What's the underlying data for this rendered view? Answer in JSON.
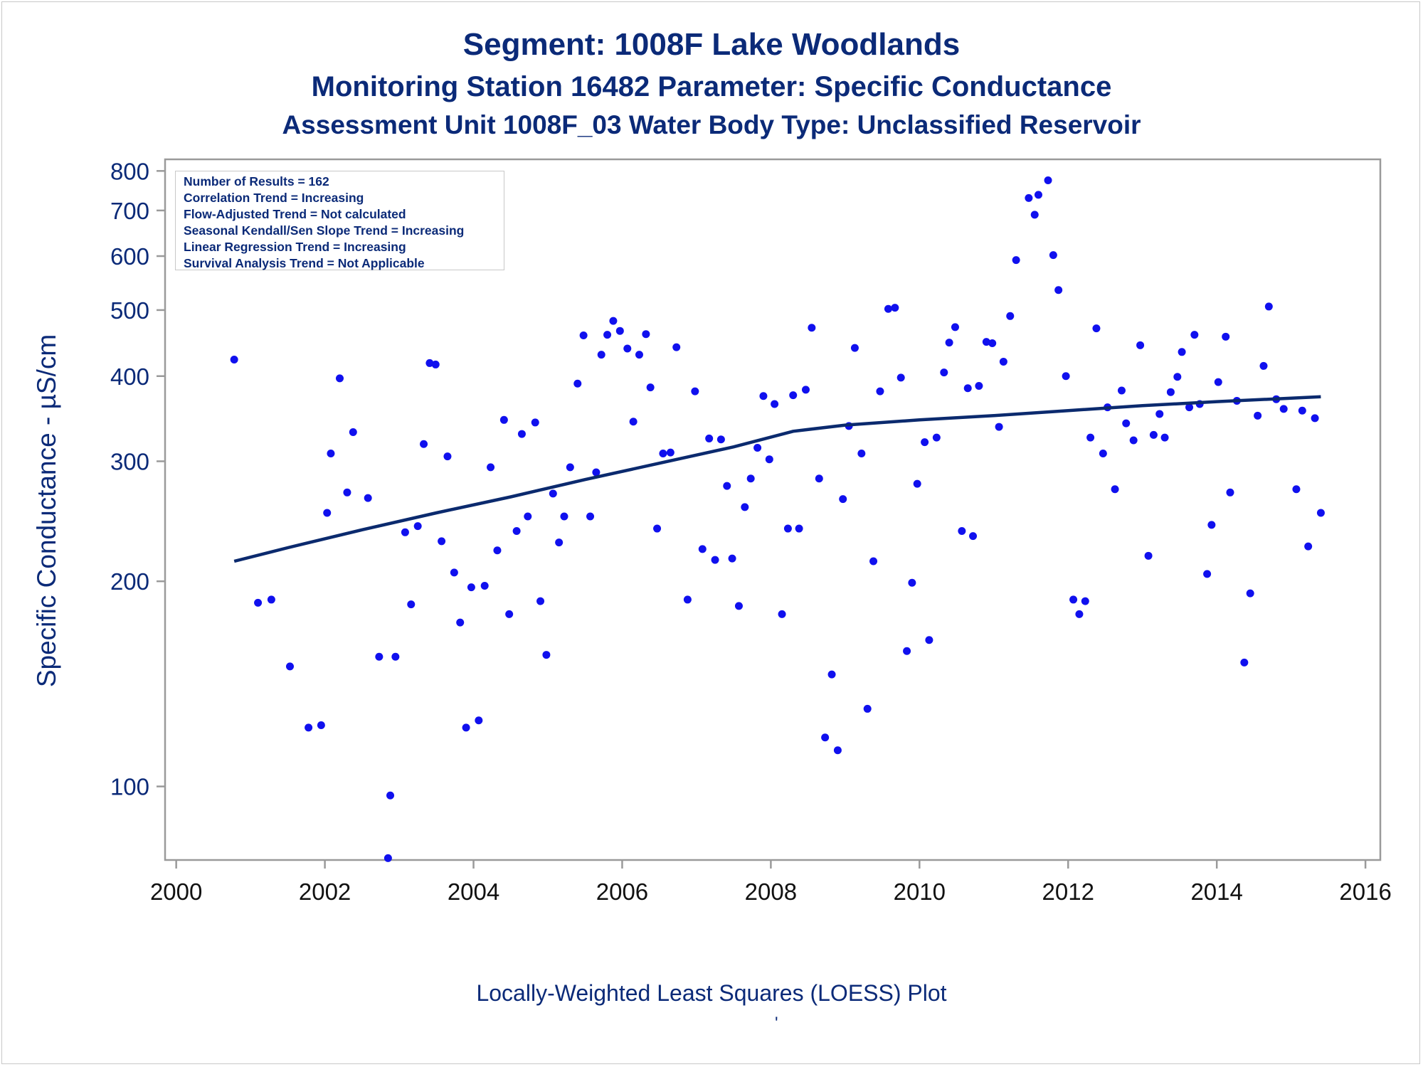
{
  "titles": {
    "line1": "Segment: 1008F  Lake Woodlands",
    "line2": "Monitoring Station 16482 Parameter: Specific Conductance",
    "line3": "Assessment Unit 1008F_03   Water Body Type: Unclassified Reservoir"
  },
  "stats": [
    "Number of Results = 162",
    "Correlation Trend = Increasing",
    "Flow-Adjusted Trend = Not calculated",
    "Seasonal Kendall/Sen Slope Trend = Increasing",
    "Linear Regression Trend = Increasing",
    "Survival Analysis Trend = Not Applicable"
  ],
  "footnote": "Locally-Weighted Least Squares (LOESS) Plot",
  "footnote_mark": "'",
  "colors": {
    "text": "#0b2a78",
    "points": "#1010ee",
    "line": "#0b2a6e",
    "frame": "#9a9a9a"
  },
  "chart_data": {
    "type": "scatter",
    "title": "Segment: 1008F  Lake Woodlands",
    "xlabel": "",
    "ylabel": "Specific Conductance -  µS/cm",
    "x_scale": "linear",
    "y_scale": "log",
    "xlim": [
      1999.85,
      2016.2
    ],
    "ylim": [
      78,
      832
    ],
    "x_ticks": [
      2000,
      2002,
      2004,
      2006,
      2008,
      2010,
      2012,
      2014,
      2016
    ],
    "y_ticks": [
      100,
      200,
      300,
      400,
      500,
      600,
      700,
      800
    ],
    "grid": false,
    "legend": "top-left inset",
    "series": [
      {
        "type": "scatter",
        "points": [
          [
            2000.78,
            423
          ],
          [
            2001.1,
            186
          ],
          [
            2001.28,
            188
          ],
          [
            2001.53,
            150
          ],
          [
            2001.78,
            122
          ],
          [
            2001.95,
            123
          ],
          [
            2002.03,
            252
          ],
          [
            2002.08,
            308
          ],
          [
            2002.2,
            397
          ],
          [
            2002.3,
            270
          ],
          [
            2002.38,
            331
          ],
          [
            2002.58,
            265
          ],
          [
            2002.73,
            155
          ],
          [
            2002.85,
            78.5
          ],
          [
            2002.88,
            97
          ],
          [
            2002.95,
            155
          ],
          [
            2003.08,
            236
          ],
          [
            2003.16,
            185
          ],
          [
            2003.25,
            241
          ],
          [
            2003.33,
            318
          ],
          [
            2003.41,
            418
          ],
          [
            2003.49,
            416
          ],
          [
            2003.57,
            229
          ],
          [
            2003.65,
            305
          ],
          [
            2003.74,
            206
          ],
          [
            2003.82,
            174
          ],
          [
            2003.9,
            122
          ],
          [
            2003.97,
            196
          ],
          [
            2004.07,
            125
          ],
          [
            2004.15,
            197
          ],
          [
            2004.23,
            294
          ],
          [
            2004.32,
            222
          ],
          [
            2004.41,
            345
          ],
          [
            2004.48,
            179
          ],
          [
            2004.58,
            237
          ],
          [
            2004.65,
            329
          ],
          [
            2004.73,
            249
          ],
          [
            2004.83,
            342
          ],
          [
            2004.9,
            187
          ],
          [
            2004.98,
            156
          ],
          [
            2005.07,
            269
          ],
          [
            2005.15,
            228
          ],
          [
            2005.22,
            249
          ],
          [
            2005.3,
            294
          ],
          [
            2005.4,
            390
          ],
          [
            2005.48,
            459
          ],
          [
            2005.57,
            249
          ],
          [
            2005.65,
            289
          ],
          [
            2005.72,
            430
          ],
          [
            2005.8,
            460
          ],
          [
            2005.88,
            482
          ],
          [
            2005.97,
            466
          ],
          [
            2006.07,
            439
          ],
          [
            2006.15,
            343
          ],
          [
            2006.23,
            430
          ],
          [
            2006.32,
            461
          ],
          [
            2006.38,
            385
          ],
          [
            2006.47,
            239
          ],
          [
            2006.55,
            308
          ],
          [
            2006.65,
            309
          ],
          [
            2006.73,
            441
          ],
          [
            2006.88,
            188
          ],
          [
            2006.98,
            380
          ],
          [
            2007.08,
            223
          ],
          [
            2007.17,
            324
          ],
          [
            2007.25,
            215
          ],
          [
            2007.33,
            323
          ],
          [
            2007.41,
            276
          ],
          [
            2007.48,
            216
          ],
          [
            2007.57,
            184
          ],
          [
            2007.65,
            257
          ],
          [
            2007.73,
            283
          ],
          [
            2007.82,
            314
          ],
          [
            2007.9,
            374
          ],
          [
            2007.98,
            302
          ],
          [
            2008.05,
            364
          ],
          [
            2008.15,
            179
          ],
          [
            2008.23,
            239
          ],
          [
            2008.3,
            375
          ],
          [
            2008.38,
            239
          ],
          [
            2008.47,
            382
          ],
          [
            2008.55,
            471
          ],
          [
            2008.65,
            283
          ],
          [
            2008.73,
            118
          ],
          [
            2008.82,
            146
          ],
          [
            2008.9,
            113
          ],
          [
            2008.97,
            264
          ],
          [
            2009.05,
            338
          ],
          [
            2009.13,
            440
          ],
          [
            2009.22,
            308
          ],
          [
            2009.3,
            130
          ],
          [
            2009.38,
            214
          ],
          [
            2009.47,
            380
          ],
          [
            2009.58,
            502
          ],
          [
            2009.67,
            504
          ],
          [
            2009.75,
            398
          ],
          [
            2009.83,
            158
          ],
          [
            2009.9,
            199
          ],
          [
            2009.97,
            278
          ],
          [
            2010.07,
            320
          ],
          [
            2010.13,
            164
          ],
          [
            2010.23,
            325
          ],
          [
            2010.33,
            405
          ],
          [
            2010.4,
            448
          ],
          [
            2010.48,
            472
          ],
          [
            2010.57,
            237
          ],
          [
            2010.65,
            384
          ],
          [
            2010.72,
            233
          ],
          [
            2010.8,
            387
          ],
          [
            2010.9,
            449
          ],
          [
            2010.98,
            447
          ],
          [
            2011.07,
            337
          ],
          [
            2011.13,
            420
          ],
          [
            2011.22,
            490
          ],
          [
            2011.3,
            592
          ],
          [
            2011.47,
            730
          ],
          [
            2011.55,
            690
          ],
          [
            2011.6,
            738
          ],
          [
            2011.73,
            775
          ],
          [
            2011.8,
            602
          ],
          [
            2011.87,
            535
          ],
          [
            2011.97,
            400
          ],
          [
            2012.07,
            188
          ],
          [
            2012.15,
            179
          ],
          [
            2012.23,
            187
          ],
          [
            2012.3,
            325
          ],
          [
            2012.38,
            470
          ],
          [
            2012.47,
            308
          ],
          [
            2012.53,
            360
          ],
          [
            2012.63,
            273
          ],
          [
            2012.72,
            381
          ],
          [
            2012.78,
            341
          ],
          [
            2012.88,
            322
          ],
          [
            2012.97,
            444
          ],
          [
            2013.08,
            218
          ],
          [
            2013.15,
            328
          ],
          [
            2013.23,
            352
          ],
          [
            2013.3,
            325
          ],
          [
            2013.38,
            379
          ],
          [
            2013.47,
            399
          ],
          [
            2013.53,
            434
          ],
          [
            2013.63,
            360
          ],
          [
            2013.7,
            460
          ],
          [
            2013.77,
            364
          ],
          [
            2013.87,
            205
          ],
          [
            2013.93,
            242
          ],
          [
            2014.02,
            392
          ],
          [
            2014.12,
            457
          ],
          [
            2014.18,
            270
          ],
          [
            2014.27,
            368
          ],
          [
            2014.37,
            152
          ],
          [
            2014.45,
            192
          ],
          [
            2014.55,
            350
          ],
          [
            2014.63,
            414
          ],
          [
            2014.7,
            506
          ],
          [
            2014.8,
            370
          ],
          [
            2014.9,
            358
          ],
          [
            2015.07,
            273
          ],
          [
            2015.15,
            356
          ],
          [
            2015.23,
            225
          ],
          [
            2015.32,
            347
          ],
          [
            2015.4,
            252
          ]
        ]
      },
      {
        "type": "line",
        "points": [
          [
            2000.78,
            214
          ],
          [
            2001.5,
            224
          ],
          [
            2002.5,
            238
          ],
          [
            2003.5,
            252
          ],
          [
            2004.5,
            266
          ],
          [
            2005.5,
            282
          ],
          [
            2006.5,
            298
          ],
          [
            2007.5,
            315
          ],
          [
            2008.3,
            332
          ],
          [
            2009.0,
            339
          ],
          [
            2010.0,
            345
          ],
          [
            2011.0,
            350
          ],
          [
            2012.0,
            356
          ],
          [
            2013.0,
            362
          ],
          [
            2014.0,
            367
          ],
          [
            2015.4,
            373
          ]
        ]
      }
    ]
  }
}
